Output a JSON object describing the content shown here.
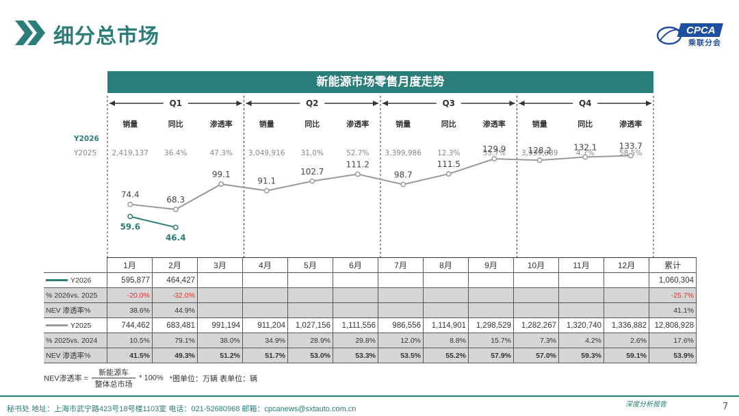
{
  "header": {
    "title": "细分总市场",
    "logo_text": "CPCA",
    "logo_sub": "乘联分会"
  },
  "chart_data": {
    "type": "line",
    "title": "新能源市场零售月度走势",
    "categories": [
      "1月",
      "2月",
      "3月",
      "4月",
      "5月",
      "6月",
      "7月",
      "8月",
      "9月",
      "10月",
      "11月",
      "12月"
    ],
    "series": [
      {
        "name": "Y2026",
        "values": [
          59.6,
          46.4,
          null,
          null,
          null,
          null,
          null,
          null,
          null,
          null,
          null,
          null
        ],
        "color": "#2a7d79"
      },
      {
        "name": "Y2025",
        "values": [
          74.4,
          68.3,
          99.1,
          91.1,
          102.7,
          111.2,
          98.7,
          111.5,
          129.9,
          128.2,
          132.1,
          133.7
        ],
        "color": "#999999"
      }
    ],
    "quarters": [
      "Q1",
      "Q2",
      "Q3",
      "Q4"
    ],
    "quarter_metric_labels": [
      "销量",
      "同比",
      "渗透率"
    ],
    "quarter_series_labels": [
      "Y2026",
      "Y2025"
    ],
    "quarter_y2025": [
      [
        "2,419,137",
        "36.4%",
        "47.3%"
      ],
      [
        "3,049,916",
        "31.0%",
        "52.7%"
      ],
      [
        "3,399,986",
        "12.3%",
        "55.7%"
      ],
      [
        "3,939,889",
        "4.7%",
        "58.5%"
      ]
    ],
    "ylim": [
      30,
      150
    ]
  },
  "table": {
    "months": [
      "1月",
      "2月",
      "3月",
      "4月",
      "5月",
      "6月",
      "7月",
      "8月",
      "9月",
      "10月",
      "11月",
      "12月"
    ],
    "total_label": "累计",
    "rows": [
      {
        "label": "Y2026",
        "legend": true,
        "color": "#2a7d79",
        "shade": false,
        "cells": [
          "595,877",
          "464,427",
          "",
          "",
          "",
          "",
          "",
          "",
          "",
          "",
          "",
          ""
        ],
        "total": "1,060,304"
      },
      {
        "label": "% 2026vs. 2025",
        "shade": true,
        "neg": true,
        "cells": [
          "-20.0%",
          "-32.0%",
          "",
          "",
          "",
          "",
          "",
          "",
          "",
          "",
          "",
          ""
        ],
        "total": "-25.7%"
      },
      {
        "label": "NEV 渗透率%",
        "shade": true,
        "cells": [
          "38.6%",
          "44.9%",
          "",
          "",
          "",
          "",
          "",
          "",
          "",
          "",
          "",
          ""
        ],
        "total": "41.1%"
      },
      {
        "label": "Y2025",
        "legend": true,
        "color": "#999999",
        "shade": false,
        "cells": [
          "744,462",
          "683,481",
          "991,194",
          "911,204",
          "1,027,156",
          "1,111,556",
          "986,556",
          "1,114,901",
          "1,298,529",
          "1,282,267",
          "1,320,740",
          "1,336,882"
        ],
        "total": "12,808,928"
      },
      {
        "label": "% 2025vs. 2024",
        "shade": true,
        "cells": [
          "10.5%",
          "79.1%",
          "38.0%",
          "34.9%",
          "28.9%",
          "29.8%",
          "12.0%",
          "8.8%",
          "15.7%",
          "7.3%",
          "4.2%",
          "2.6%"
        ],
        "total": "17.6%"
      },
      {
        "label": "NEV 渗透率%",
        "shade": true,
        "bold": true,
        "cells": [
          "41.5%",
          "49.3%",
          "51.2%",
          "51.7%",
          "53.0%",
          "53.3%",
          "53.5%",
          "55.2%",
          "57.9%",
          "57.0%",
          "59.3%",
          "59.1%"
        ],
        "total": "53.9%"
      }
    ]
  },
  "formula": {
    "lhs": "NEV渗透率 =",
    "numerator": "新能源车",
    "denominator": "整体总市场",
    "suffix": "* 100%",
    "units": "*图单位：万辆    表单位：辆"
  },
  "footer": {
    "text": "秘书处   地址：上海市武宁路423号18号楼1103室   电话：021-52680968   邮箱：cpcanews@sxtauto.com.cn",
    "right": "深度分析报告",
    "page": "7"
  }
}
